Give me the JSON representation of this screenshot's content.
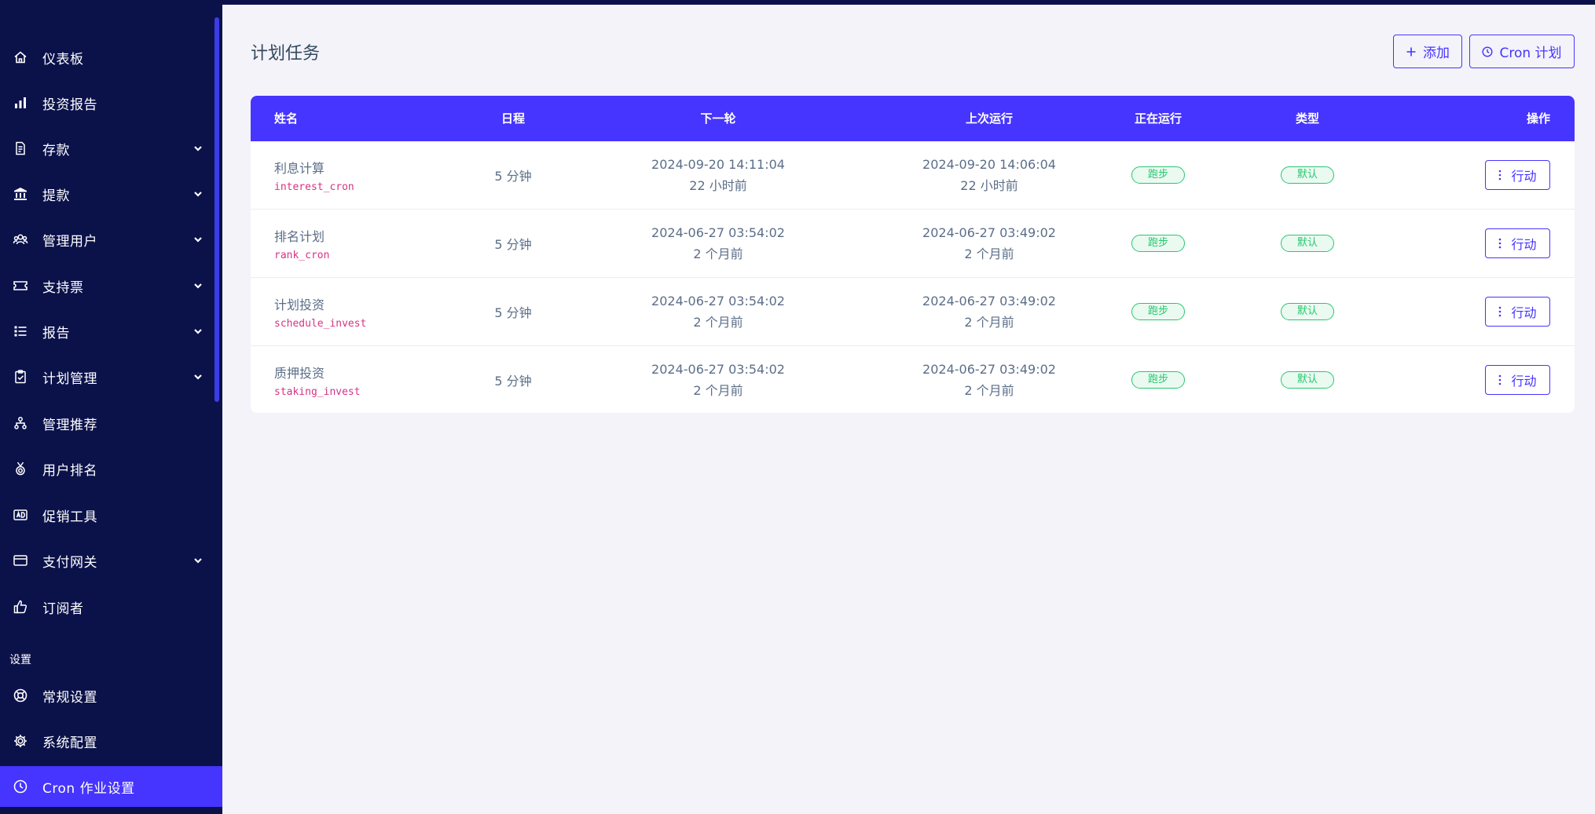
{
  "sidebar": {
    "items": [
      {
        "label": "仪表板",
        "icon": "home-icon",
        "chevron": false
      },
      {
        "label": "投资报告",
        "icon": "bar-chart-icon",
        "chevron": false
      },
      {
        "label": "存款",
        "icon": "deposit-icon",
        "chevron": true
      },
      {
        "label": "提款",
        "icon": "bank-icon",
        "chevron": true
      },
      {
        "label": "管理用户",
        "icon": "users-icon",
        "chevron": true
      },
      {
        "label": "支持票",
        "icon": "ticket-icon",
        "chevron": true
      },
      {
        "label": "报告",
        "icon": "list-icon",
        "chevron": true
      },
      {
        "label": "计划管理",
        "icon": "clipboard-icon",
        "chevron": true
      },
      {
        "label": "管理推荐",
        "icon": "tree-icon",
        "chevron": false
      },
      {
        "label": "用户排名",
        "icon": "medal-icon",
        "chevron": false
      },
      {
        "label": "促销工具",
        "icon": "ad-icon",
        "chevron": false
      },
      {
        "label": "支付网关",
        "icon": "credit-card-icon",
        "chevron": true
      },
      {
        "label": "订阅者",
        "icon": "thumbs-up-icon",
        "chevron": false
      }
    ],
    "section_title": "设置",
    "settings_items": [
      {
        "label": "常规设置",
        "icon": "lifebuoy-icon"
      },
      {
        "label": "系统配置",
        "icon": "gear-icon"
      },
      {
        "label": "Cron 作业设置",
        "icon": "clock-icon",
        "active": true
      }
    ]
  },
  "header": {
    "title": "计划任务",
    "add_label": "添加",
    "cron_label": "Cron 计划"
  },
  "table": {
    "columns": {
      "name": "姓名",
      "schedule": "日程",
      "next": "下一轮",
      "last": "上次运行",
      "running": "正在运行",
      "type": "类型",
      "action": "操作"
    },
    "rows": [
      {
        "name": "利息计算",
        "code": "interest_cron",
        "schedule": "5 分钟",
        "next_date": "2024-09-20 14:11:04",
        "next_rel": "22 小时前",
        "last_date": "2024-09-20 14:06:04",
        "last_rel": "22 小时前",
        "running": "跑步",
        "type": "默认",
        "action": "行动"
      },
      {
        "name": "排名计划",
        "code": "rank_cron",
        "schedule": "5 分钟",
        "next_date": "2024-06-27 03:54:02",
        "next_rel": "2 个月前",
        "last_date": "2024-06-27 03:49:02",
        "last_rel": "2 个月前",
        "running": "跑步",
        "type": "默认",
        "action": "行动"
      },
      {
        "name": "计划投资",
        "code": "schedule_invest",
        "schedule": "5 分钟",
        "next_date": "2024-06-27 03:54:02",
        "next_rel": "2 个月前",
        "last_date": "2024-06-27 03:49:02",
        "last_rel": "2 个月前",
        "running": "跑步",
        "type": "默认",
        "action": "行动"
      },
      {
        "name": "质押投资",
        "code": "staking_invest",
        "schedule": "5 分钟",
        "next_date": "2024-06-27 03:54:02",
        "next_rel": "2 个月前",
        "last_date": "2024-06-27 03:49:02",
        "last_rel": "2 个月前",
        "running": "跑步",
        "type": "默认",
        "action": "行动"
      }
    ]
  },
  "colors": {
    "sidebar_bg": "#0b124a",
    "accent": "#4634ff",
    "page_bg": "#f3f3f9",
    "badge_green": "#28c76f",
    "code_pink": "#d63384"
  }
}
